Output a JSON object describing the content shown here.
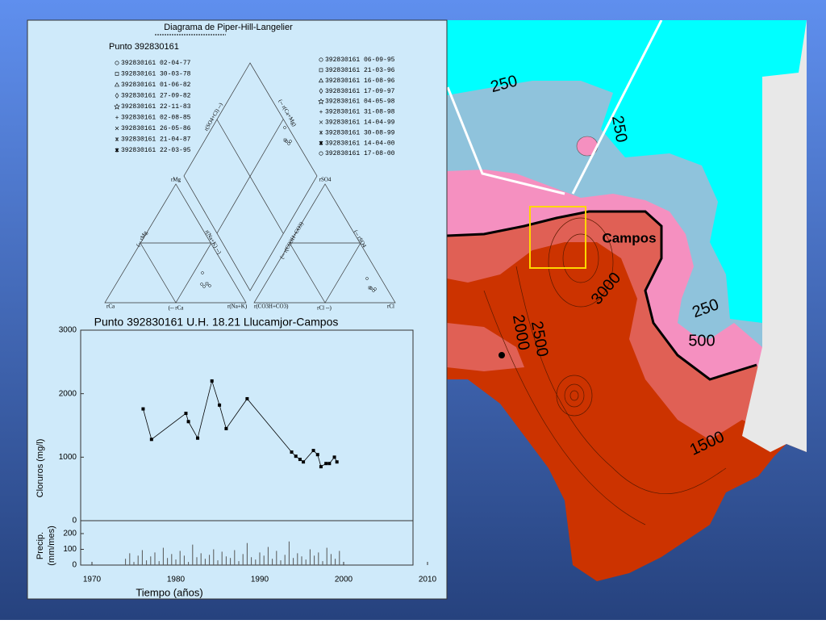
{
  "piper": {
    "title": "Diagrama de Piper-Hill-Langelier",
    "point": "Punto 392830161",
    "legend_left": [
      "392830161  02-04-77",
      "392830161  30-03-78",
      "392830161  01-06-82",
      "392830161  27-09-82",
      "392830161  22-11-83",
      "392830161  02-08-85",
      "392830161  26-05-86",
      "392830161  21-04-87",
      "392830161  22-03-95"
    ],
    "legend_right": [
      "392830161  06-09-95",
      "392830161  21-03-96",
      "392830161  16-08-96",
      "392830161  17-09-97",
      "392830161  04-05-98",
      "392830161  31-08-98",
      "392830161  14-04-99",
      "392830161  30-08-99",
      "392830161  14-04-00",
      "392830161  17-08-00"
    ],
    "vertex_labels": [
      "rMg",
      "rSO4",
      "rCa",
      "r(Na+K)",
      "r(CO3H+CO3)",
      "rCl",
      "(-- rCa",
      "rCl --)"
    ],
    "side_labels": [
      "r(SO4+Cl) --)",
      "(-- r(Ca+Mg)",
      "(-- rMg",
      "r(Na+K) --)",
      "(-- r(CO3H+CO3)",
      "(-- rSO4"
    ]
  },
  "chart_data": [
    {
      "type": "line",
      "title": "Punto 392830161  U.H. 18.21 Llucamjor-Campos",
      "ylabel": "Cloruros (mg/l)",
      "xlabel": "Tiempo (años)",
      "x": [
        1976.1,
        1977.1,
        1981.2,
        1981.5,
        1982.6,
        1984.3,
        1985.2,
        1986.0,
        1988.5,
        1993.8,
        1994.3,
        1994.8,
        1995.2,
        1996.4,
        1996.9,
        1997.3,
        1997.9,
        1998.3,
        1998.9,
        1999.2
      ],
      "values": [
        1760,
        1280,
        1690,
        1560,
        1300,
        2200,
        1820,
        1450,
        1920,
        1080,
        1015,
        965,
        925,
        1105,
        1040,
        850,
        900,
        900,
        1000,
        925
      ],
      "color": "#000000",
      "xlim": [
        1970,
        2010
      ],
      "xticks": [
        1970,
        1980,
        1990,
        2000,
        2010
      ],
      "ylim": [
        0,
        3000
      ],
      "yticks": [
        0,
        1000,
        2000,
        3000
      ]
    },
    {
      "type": "bar",
      "ylabel": [
        "Precip.",
        "(mm/mes)"
      ],
      "x": [
        1974,
        1974.5,
        1975,
        1975.5,
        1976,
        1976.5,
        1977,
        1977.5,
        1978,
        1978.5,
        1979,
        1979.5,
        1980,
        1980.5,
        1981,
        1981.5,
        1982,
        1982.5,
        1983,
        1983.5,
        1984,
        1984.5,
        1985,
        1985.5,
        1986,
        1986.5,
        1987,
        1987.5,
        1988,
        1988.5,
        1989,
        1989.5,
        1990,
        1990.5,
        1991,
        1991.5,
        1992,
        1992.5,
        1993,
        1993.5,
        1994,
        1994.5,
        1995,
        1995.5,
        1996,
        1996.5,
        1997,
        1997.5,
        1998,
        1998.5,
        1999,
        1999.5
      ],
      "values": [
        40,
        75,
        20,
        60,
        95,
        30,
        55,
        80,
        25,
        110,
        45,
        70,
        35,
        90,
        60,
        20,
        130,
        50,
        75,
        40,
        65,
        100,
        30,
        85,
        55,
        45,
        95,
        25,
        70,
        140,
        50,
        35,
        80,
        60,
        115,
        40,
        90,
        30,
        65,
        150,
        45,
        75,
        55,
        35,
        100,
        60,
        80,
        25,
        110,
        70,
        40,
        90
      ],
      "color": "#555555",
      "xlim": [
        1970,
        2010
      ],
      "ylim": [
        0,
        200
      ],
      "yticks": [
        0,
        100,
        200
      ]
    }
  ],
  "map": {
    "contours": [
      "250",
      "250",
      "250",
      "500",
      "1500",
      "2000",
      "2500",
      "3000"
    ],
    "place": "Campos"
  }
}
